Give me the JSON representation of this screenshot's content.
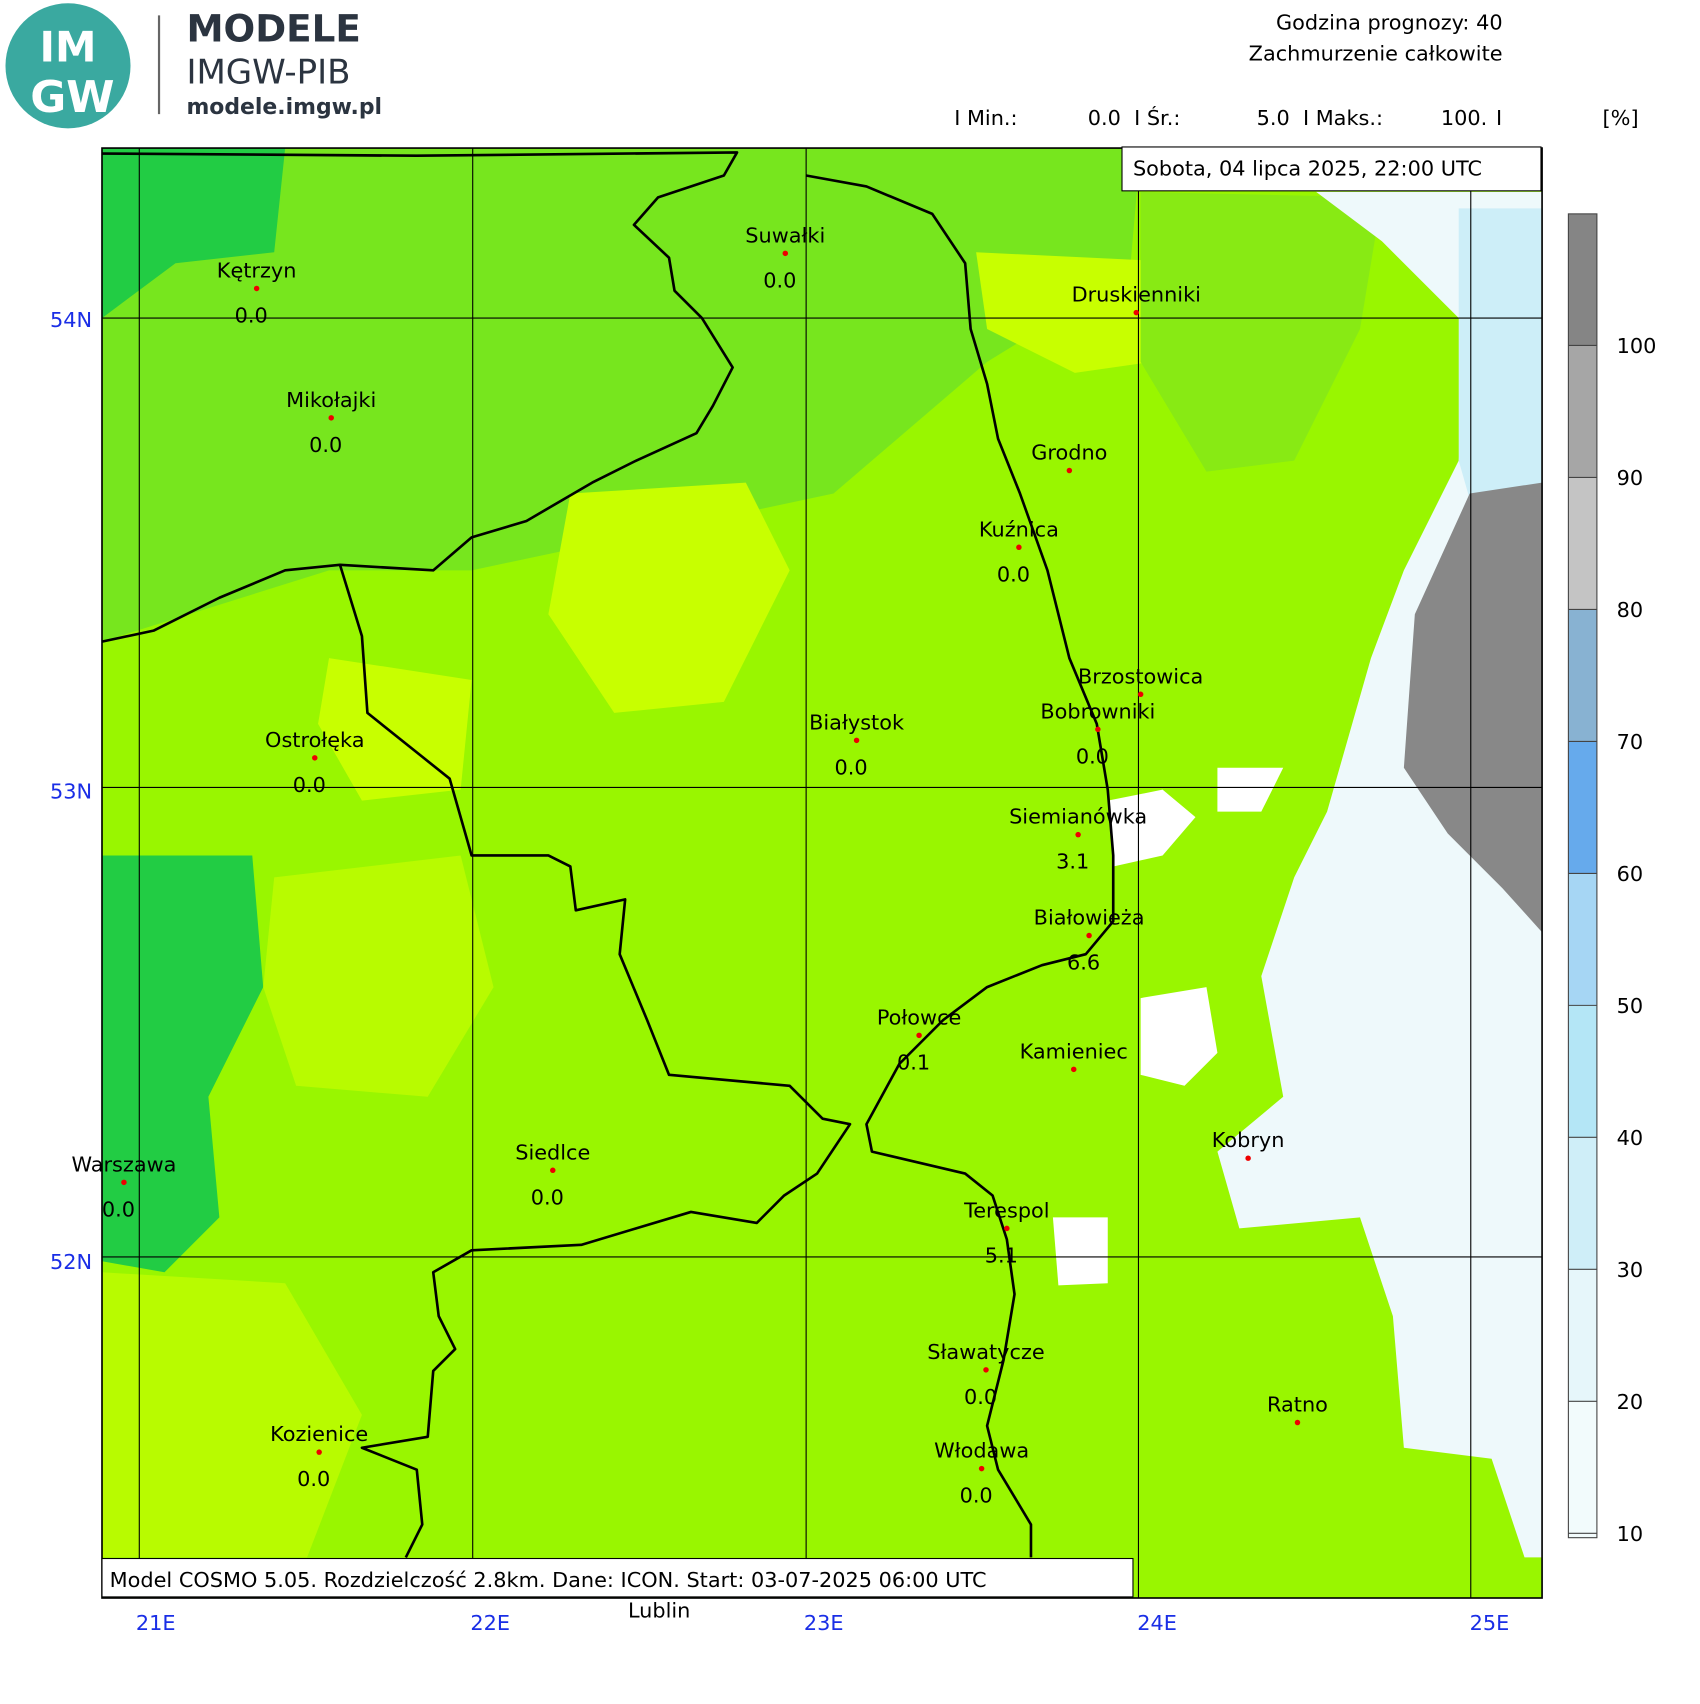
{
  "header": {
    "logo": {
      "mark_top": "IM",
      "mark_bottom": "GW",
      "title": "MODELE",
      "subtitle": "IMGW-PIB",
      "url": "modele.imgw.pl"
    },
    "forecast_hour": "Godzina prognozy: 40",
    "field": "Zachmurzenie całkowite",
    "stats": {
      "min_label": "I Min.:",
      "min": "0.0",
      "mean_label": "I Śr.:",
      "mean": "5.0",
      "max_label": "I Maks.:",
      "max": "100.",
      "end": "I",
      "unit": "[%]"
    }
  },
  "date": "Sobota, 04 lipca 2025, 22:00 UTC",
  "footer": "Model COSMO 5.05. Rozdzielczość 2.8km. Dane: ICON. Start: 03-07-2025 06:00 UTC",
  "map": {
    "lat_labels": [
      "54N",
      "53N",
      "52N"
    ],
    "lon_labels": [
      "21E",
      "22E",
      "23E",
      "24E",
      "25E"
    ],
    "outside_label": "Lublin",
    "cities": [
      {
        "name": "Kętrzyn",
        "value": "0.0"
      },
      {
        "name": "Mikołajki",
        "value": "0.0"
      },
      {
        "name": "Suwałki",
        "value": "0.0"
      },
      {
        "name": "Druskienniki"
      },
      {
        "name": "Grodno"
      },
      {
        "name": "Kuźnica",
        "value": "0.0"
      },
      {
        "name": "Ostrołęka",
        "value": "0.0"
      },
      {
        "name": "Białystok",
        "value": "0.0"
      },
      {
        "name": "Brzostowica"
      },
      {
        "name": "Bobrowniki",
        "value": "0.0"
      },
      {
        "name": "Siemianówka",
        "value": "3.1"
      },
      {
        "name": "Białowieża",
        "value": "6.6"
      },
      {
        "name": "Połowce",
        "value": "0.1"
      },
      {
        "name": "Kamieniec"
      },
      {
        "name": "Kobryn"
      },
      {
        "name": "Warszawa",
        "value": "0.0"
      },
      {
        "name": "Siedlce",
        "value": "0.0"
      },
      {
        "name": "Terespol",
        "value": "5.1"
      },
      {
        "name": "Sławatycze",
        "value": "0.0"
      },
      {
        "name": "Ratno"
      },
      {
        "name": "Kozienice",
        "value": "0.0"
      },
      {
        "name": "Włodawa",
        "value": "0.0"
      }
    ]
  },
  "colorbar": {
    "ticks": [
      10,
      20,
      30,
      40,
      50,
      60,
      70,
      80,
      90,
      100
    ],
    "colors": [
      "#f2fbfc",
      "#e6f6fa",
      "#cfeef8",
      "#b4e6f6",
      "#a6d6f4",
      "#66aaec",
      "#88b2d2",
      "#c4c4c4",
      "#a6a6a6",
      "#858585"
    ]
  }
}
